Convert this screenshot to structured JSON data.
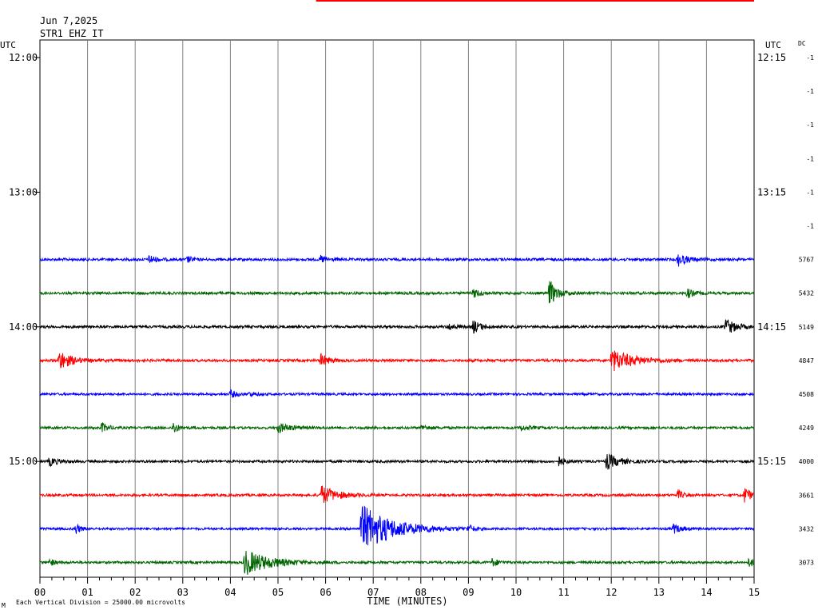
{
  "header": {
    "date": "Jun 7,2025",
    "station": "STR1 EHZ IT",
    "left_tz": "UTC",
    "right_tz": "UTC",
    "dc_label": "DC",
    "footnote": "Each Vertical Division = 25000.00 microvolts",
    "corner_mark": "M"
  },
  "chart_data": {
    "type": "line",
    "title": "STR1 EHZ IT",
    "xlabel": "TIME (MINUTES)",
    "ylabel": "",
    "x_ticks": [
      "00",
      "01",
      "02",
      "03",
      "04",
      "05",
      "06",
      "07",
      "08",
      "09",
      "10",
      "11",
      "12",
      "13",
      "14",
      "15"
    ],
    "xlim": [
      0,
      15
    ],
    "grid": true,
    "rows_total": 16,
    "left_time_labels": [
      {
        "row": 0,
        "label": "12:00"
      },
      {
        "row": 4,
        "label": "13:00"
      },
      {
        "row": 8,
        "label": "14:00"
      },
      {
        "row": 12,
        "label": "15:00"
      }
    ],
    "right_time_labels": [
      {
        "row": 0,
        "label": "12:15"
      },
      {
        "row": 4,
        "label": "13:15"
      },
      {
        "row": 8,
        "label": "14:15"
      },
      {
        "row": 12,
        "label": "15:15"
      }
    ],
    "dc_values": [
      "-1",
      "-1",
      "-1",
      "-1",
      "-1",
      "-1",
      "5767",
      "5432",
      "5149",
      "4847",
      "4508",
      "4249",
      "4000",
      "3661",
      "3432",
      "3073"
    ],
    "trace_colors": [
      "#0000ff",
      "#006400",
      "#000000",
      "#ff0000"
    ],
    "series": [
      {
        "row": 6,
        "color": "#0000ff",
        "noise": 1.6,
        "events": [
          [
            2.3,
            0.2,
            6
          ],
          [
            3.1,
            0.15,
            4
          ],
          [
            5.9,
            0.2,
            5
          ],
          [
            13.4,
            0.3,
            8
          ]
        ]
      },
      {
        "row": 7,
        "color": "#006400",
        "noise": 1.6,
        "events": [
          [
            9.1,
            0.25,
            5
          ],
          [
            10.7,
            0.25,
            16
          ],
          [
            13.6,
            0.2,
            6
          ]
        ]
      },
      {
        "row": 8,
        "color": "#000000",
        "noise": 1.6,
        "events": [
          [
            8.6,
            0.2,
            4
          ],
          [
            9.1,
            0.25,
            8
          ],
          [
            14.4,
            0.35,
            10
          ]
        ]
      },
      {
        "row": 9,
        "color": "#ff0000",
        "noise": 1.6,
        "events": [
          [
            0.4,
            0.4,
            12
          ],
          [
            5.9,
            0.25,
            8
          ],
          [
            12.0,
            0.7,
            14
          ]
        ]
      },
      {
        "row": 10,
        "color": "#0000ff",
        "noise": 1.4,
        "events": [
          [
            4.0,
            0.2,
            5
          ],
          [
            4.4,
            0.2,
            3
          ]
        ]
      },
      {
        "row": 11,
        "color": "#006400",
        "noise": 1.5,
        "events": [
          [
            1.3,
            0.2,
            6
          ],
          [
            2.8,
            0.15,
            8
          ],
          [
            5.0,
            0.4,
            6
          ],
          [
            8.0,
            0.3,
            3
          ],
          [
            10.1,
            0.3,
            3
          ]
        ]
      },
      {
        "row": 12,
        "color": "#000000",
        "noise": 1.5,
        "events": [
          [
            0.2,
            0.3,
            5
          ],
          [
            10.9,
            0.2,
            6
          ],
          [
            11.9,
            0.4,
            10
          ]
        ]
      },
      {
        "row": 13,
        "color": "#ff0000",
        "noise": 1.5,
        "events": [
          [
            5.9,
            0.5,
            12
          ],
          [
            13.4,
            0.15,
            6
          ],
          [
            14.8,
            0.2,
            10
          ]
        ]
      },
      {
        "row": 14,
        "color": "#0000ff",
        "noise": 1.4,
        "events": [
          [
            0.75,
            0.15,
            7
          ],
          [
            6.75,
            1.0,
            30
          ],
          [
            9.0,
            0.2,
            4
          ],
          [
            13.3,
            0.25,
            6
          ]
        ]
      },
      {
        "row": 15,
        "color": "#006400",
        "noise": 1.5,
        "events": [
          [
            0.2,
            0.15,
            5
          ],
          [
            4.3,
            0.8,
            16
          ],
          [
            9.5,
            0.2,
            5
          ],
          [
            14.9,
            0.1,
            8
          ]
        ]
      }
    ]
  },
  "markers": {
    "top_bar_color": "#ff0000",
    "top_bar_start_minute": 5.8,
    "top_bar_end_minute": 15
  }
}
